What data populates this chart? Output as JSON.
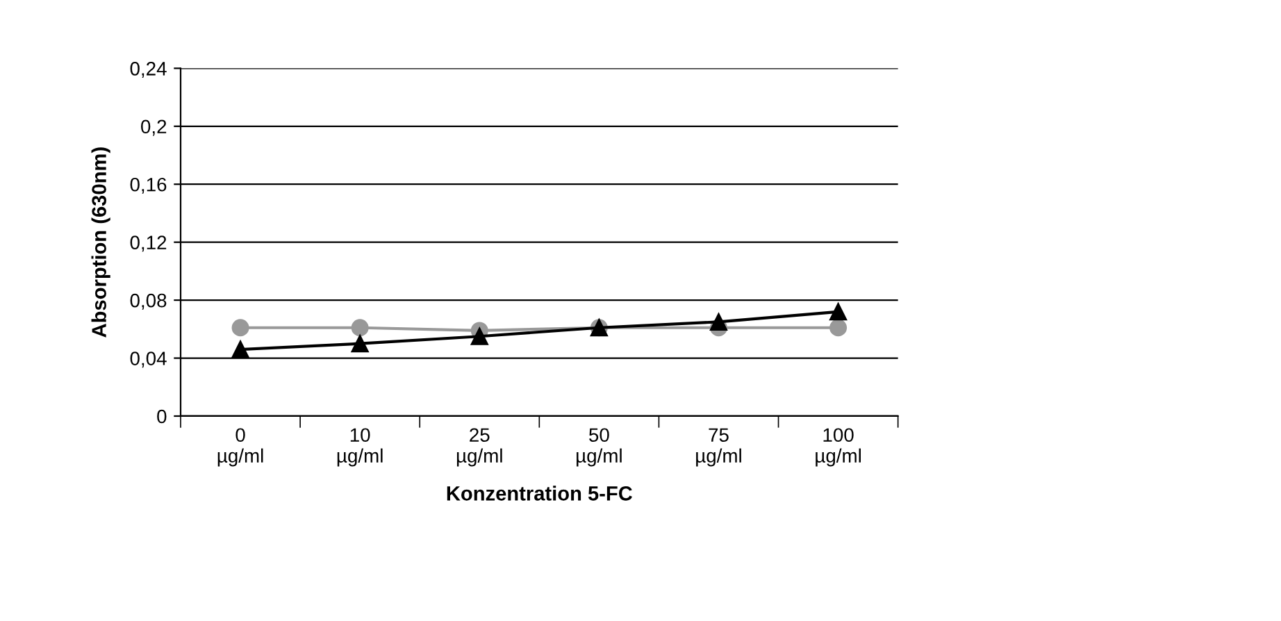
{
  "chart_data": {
    "type": "line",
    "xlabel": "Konzentration 5-FC",
    "ylabel": "Absorption (630nm)",
    "categories": [
      "0\nµg/ml",
      "10\nµg/ml",
      "25\nµg/ml",
      "50\nµg/ml",
      "75\nµg/ml",
      "100\nµg/ml"
    ],
    "series": [
      {
        "color": "#999999",
        "marker": "circle",
        "values": [
          0.061,
          0.061,
          0.059,
          0.061,
          0.061,
          0.061
        ]
      },
      {
        "color": "#000000",
        "marker": "triangle",
        "values": [
          0.046,
          0.05,
          0.055,
          0.061,
          0.065,
          0.072
        ]
      }
    ],
    "ylim": [
      0,
      0.24
    ],
    "yticks": [
      {
        "value": 0,
        "label": "0"
      },
      {
        "value": 0.04,
        "label": "0,04"
      },
      {
        "value": 0.08,
        "label": "0,08"
      },
      {
        "value": 0.12,
        "label": "0,12"
      },
      {
        "value": 0.16,
        "label": "0,16"
      },
      {
        "value": 0.2,
        "label": "0,2"
      },
      {
        "value": 0.24,
        "label": "0,24"
      }
    ],
    "grid": "y",
    "line_style": "solid"
  }
}
